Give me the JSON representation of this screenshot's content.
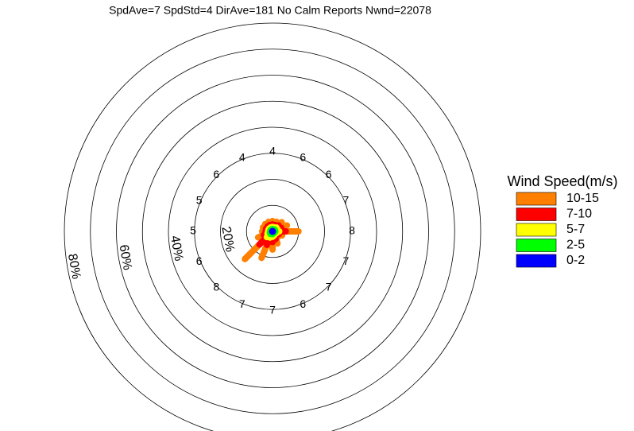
{
  "chart_data": {
    "type": "windrose",
    "title": "SpdAve=7  SpdStd=4  DirAve=181   No Calm Reports  Nwnd=22078",
    "legend_title": "Wind Speed(m/s)",
    "rlim": [
      0,
      80
    ],
    "rgrid": [
      10,
      20,
      30,
      40,
      50,
      60,
      70,
      80
    ],
    "rtick_labels": [
      {
        "value": 20,
        "label": "20%"
      },
      {
        "value": 40,
        "label": "40%"
      },
      {
        "value": 60,
        "label": "60%"
      },
      {
        "value": 80,
        "label": "80%"
      }
    ],
    "sector_labels": [
      4,
      6,
      6,
      7,
      8,
      7,
      7,
      6,
      7,
      7,
      8,
      6,
      5,
      5,
      6,
      4
    ],
    "series": [
      {
        "name": "0-2",
        "color": "#0000ff",
        "values": [
          0.1,
          0.1,
          0.1,
          0.1,
          0.1,
          0.1,
          0.1,
          0.1,
          0.1,
          0.1,
          0.1,
          0.1,
          0.1,
          0.1,
          0.1,
          0.1
        ]
      },
      {
        "name": "2-5",
        "color": "#00ff00",
        "values": [
          0.8,
          0.8,
          1,
          1,
          1,
          0.8,
          0.6,
          0.8,
          1,
          1,
          1.2,
          1,
          0.8,
          0.8,
          0.8,
          0.8
        ]
      },
      {
        "name": "5-7",
        "color": "#ffff00",
        "values": [
          0.8,
          0.8,
          1,
          1,
          1.5,
          0.8,
          0.6,
          0.8,
          1,
          1.5,
          1.8,
          1,
          0.8,
          0.8,
          0.8,
          0.8
        ]
      },
      {
        "name": "7-10",
        "color": "#ff0000",
        "values": [
          1,
          1,
          1.2,
          1.5,
          2.5,
          1,
          0.8,
          1.5,
          2,
          3,
          4,
          1.5,
          1,
          1,
          1,
          1
        ]
      },
      {
        "name": "10-15",
        "color": "#ff8000",
        "values": [
          1.3,
          1.3,
          1.7,
          2.4,
          4.9,
          1.3,
          0.9,
          1.8,
          2.9,
          5.4,
          7.9,
          2.4,
          1.3,
          1.3,
          1.3,
          1.3
        ]
      }
    ]
  }
}
